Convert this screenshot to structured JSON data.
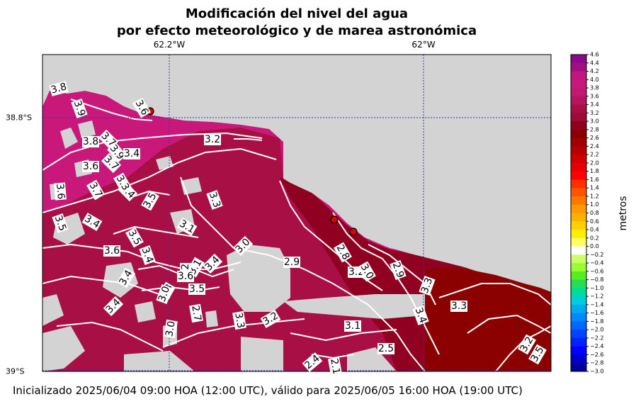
{
  "title_line1": "Modificación del nivel del agua",
  "title_line2": "por efecto meteorológico y de marea astronómica",
  "axes": {
    "lon_ticks": [
      "62.2°W",
      "62°W"
    ],
    "lat_ticks": [
      "38.8°S",
      "39°S"
    ]
  },
  "map": {
    "land_color": "#d3d3d3",
    "contour_color": "#ffffff",
    "contour_labels": [
      "3.8",
      "3.9",
      "3.6",
      "3.7",
      "3.8",
      "3.9",
      "3.4",
      "3.7",
      "3.6",
      "3.7",
      "3.6",
      "3.5",
      "3.4",
      "3.4",
      "3.6",
      "3.3",
      "3.5",
      "3.5",
      "3.4",
      "3.4",
      "3.4",
      "3.1",
      "3.2",
      "3.6",
      "3.3",
      "3.4",
      "3.5",
      "3.3",
      "3.2",
      "3.1",
      "3.0",
      "2.9",
      "2.8",
      "3.2",
      "3.0",
      "2.9",
      "3.3",
      "3.3",
      "3.4",
      "3.3",
      "3.2",
      "3.1",
      "3.0",
      "3.0",
      "2.7",
      "2.4",
      "2.5",
      "2.1",
      "3.2",
      "3.5"
    ],
    "stations": 3
  },
  "colorbar": {
    "label": "metros",
    "ticks": [
      "4.6",
      "4.4",
      "4.2",
      "4.0",
      "3.8",
      "3.6",
      "3.4",
      "3.2",
      "3.0",
      "2.8",
      "2.6",
      "2.4",
      "2.2",
      "2.0",
      "1.8",
      "1.6",
      "1.4",
      "1.2",
      "1.0",
      "0.8",
      "0.6",
      "0.4",
      "0.2",
      "0.0",
      "−0.2",
      "−0.4",
      "−0.6",
      "−0.8",
      "−1.0",
      "−1.2",
      "−1.4",
      "−1.6",
      "−1.8",
      "−2.0",
      "−2.2",
      "−2.4",
      "−2.6",
      "−2.8",
      "−3.0"
    ],
    "colors": [
      "#8b0a8b",
      "#a01080",
      "#c4157e",
      "#c8187a",
      "#c21a70",
      "#b8155f",
      "#a80f45",
      "#a00a38",
      "#900020",
      "#8b0000",
      "#a00000",
      "#b80000",
      "#d00000",
      "#e80000",
      "#ff0000",
      "#ff3000",
      "#ff5500",
      "#ff7700",
      "#ff9900",
      "#ffb000",
      "#ffd000",
      "#ffee00",
      "#ffff60",
      "#ffffff",
      "#ccff66",
      "#99ff33",
      "#55ee22",
      "#22dd55",
      "#00dd99",
      "#00ccdd",
      "#00aaee",
      "#0088ff",
      "#0066ff",
      "#0044ff",
      "#0022ff",
      "#0000ff",
      "#0000cc",
      "#000099",
      "#000077"
    ]
  },
  "footer": "Inicializado 2025/06/04 09:00 HOA (12:00 UTC), válido para 2025/06/05 16:00 HOA (19:00 UTC)"
}
